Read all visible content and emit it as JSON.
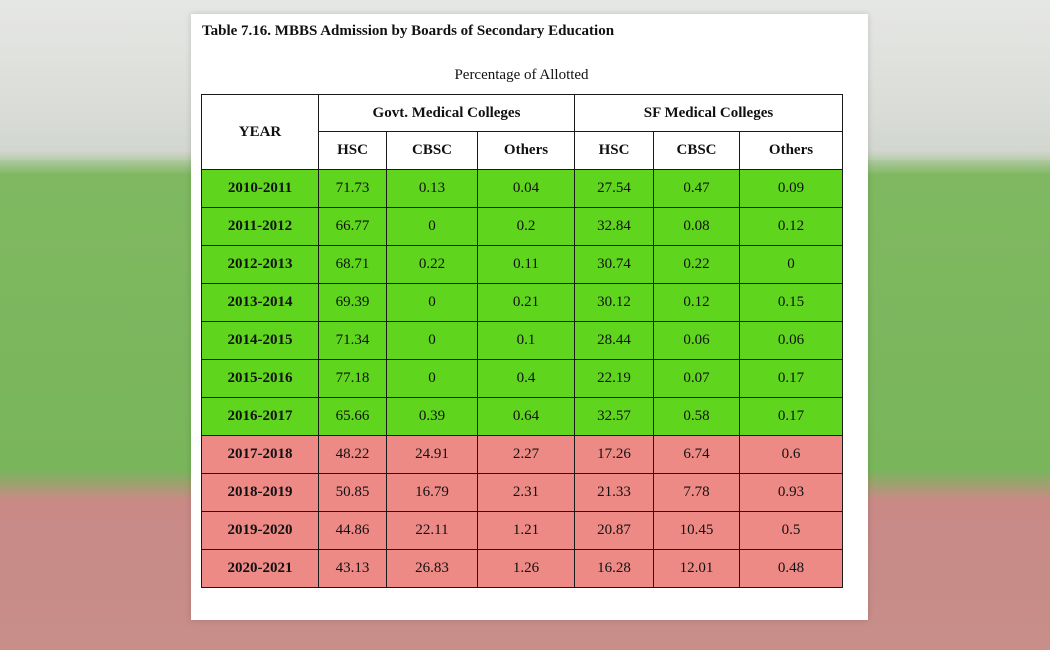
{
  "document": {
    "title": "Table 7.16. MBBS Admission by Boards of Secondary Education",
    "subtitle": "Percentage of Allotted"
  },
  "table": {
    "year_header": "YEAR",
    "groups": [
      "Govt. Medical Colleges",
      "SF Medical Colleges"
    ],
    "subheaders": [
      "HSC",
      "CBSC",
      "Others",
      "HSC",
      "CBSC",
      "Others"
    ],
    "rows": [
      {
        "year": "2010-2011",
        "highlight": "green",
        "values": [
          "71.73",
          "0.13",
          "0.04",
          "27.54",
          "0.47",
          "0.09"
        ]
      },
      {
        "year": "2011-2012",
        "highlight": "green",
        "values": [
          "66.77",
          "0",
          "0.2",
          "32.84",
          "0.08",
          "0.12"
        ]
      },
      {
        "year": "2012-2013",
        "highlight": "green",
        "values": [
          "68.71",
          "0.22",
          "0.11",
          "30.74",
          "0.22",
          "0"
        ]
      },
      {
        "year": "2013-2014",
        "highlight": "green",
        "values": [
          "69.39",
          "0",
          "0.21",
          "30.12",
          "0.12",
          "0.15"
        ]
      },
      {
        "year": "2014-2015",
        "highlight": "green",
        "values": [
          "71.34",
          "0",
          "0.1",
          "28.44",
          "0.06",
          "0.06"
        ]
      },
      {
        "year": "2015-2016",
        "highlight": "green",
        "values": [
          "77.18",
          "0",
          "0.4",
          "22.19",
          "0.07",
          "0.17"
        ]
      },
      {
        "year": "2016-2017",
        "highlight": "green",
        "values": [
          "65.66",
          "0.39",
          "0.64",
          "32.57",
          "0.58",
          "0.17"
        ]
      },
      {
        "year": "2017-2018",
        "highlight": "red",
        "values": [
          "48.22",
          "24.91",
          "2.27",
          "17.26",
          "6.74",
          "0.6"
        ]
      },
      {
        "year": "2018-2019",
        "highlight": "red",
        "values": [
          "50.85",
          "16.79",
          "2.31",
          "21.33",
          "7.78",
          "0.93"
        ]
      },
      {
        "year": "2019-2020",
        "highlight": "red",
        "values": [
          "44.86",
          "22.11",
          "1.21",
          "20.87",
          "10.45",
          "0.5"
        ]
      },
      {
        "year": "2020-2021",
        "highlight": "red",
        "values": [
          "43.13",
          "26.83",
          "1.26",
          "16.28",
          "12.01",
          "0.48"
        ]
      }
    ]
  },
  "colors": {
    "green_row": "#5fd61d",
    "red_row": "#ee8a86"
  }
}
